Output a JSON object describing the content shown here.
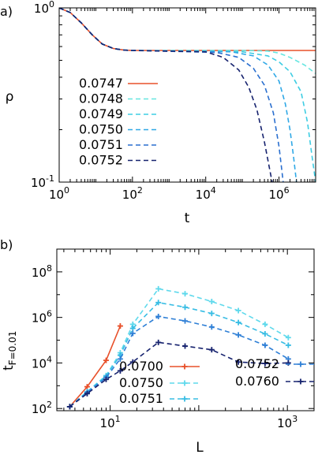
{
  "chart_data": [
    {
      "type": "line",
      "panel_label": "a)",
      "xlabel": "t",
      "ylabel": "ρ",
      "xscale": "log",
      "yscale": "log",
      "xlim": [
        1,
        10000000
      ],
      "ylim": [
        0.1,
        1
      ],
      "x_ticks": [
        {
          "value": 1,
          "base": "10",
          "exp": "0"
        },
        {
          "value": 100,
          "base": "10",
          "exp": "2"
        },
        {
          "value": 10000,
          "base": "10",
          "exp": "4"
        },
        {
          "value": 1000000,
          "base": "10",
          "exp": "6"
        }
      ],
      "y_ticks": [
        {
          "value": 1,
          "base": "10",
          "exp": "0"
        },
        {
          "value": 0.1,
          "base": "10",
          "exp": "-1"
        }
      ],
      "legend_position": "bottom-left",
      "series": [
        {
          "name": "0.0747",
          "color": "#e8502a",
          "dash": "solid",
          "points": [
            [
              1,
              1
            ],
            [
              2,
              0.94
            ],
            [
              4,
              0.82
            ],
            [
              8,
              0.7
            ],
            [
              15,
              0.62
            ],
            [
              30,
              0.585
            ],
            [
              60,
              0.572
            ],
            [
              100,
              0.57
            ],
            [
              10000000,
              0.57
            ]
          ]
        },
        {
          "name": "0.0748",
          "color": "#66e6e0",
          "dash": "dashed",
          "points": [
            [
              1,
              1
            ],
            [
              2,
              0.94
            ],
            [
              4,
              0.82
            ],
            [
              8,
              0.7
            ],
            [
              15,
              0.62
            ],
            [
              30,
              0.585
            ],
            [
              60,
              0.572
            ],
            [
              100,
              0.57
            ],
            [
              100000,
              0.57
            ],
            [
              500000,
              0.565
            ],
            [
              1000000,
              0.55
            ],
            [
              2000000,
              0.52
            ],
            [
              5000000,
              0.47
            ],
            [
              10000000,
              0.42
            ]
          ]
        },
        {
          "name": "0.0749",
          "color": "#3ecde3",
          "dash": "dashed",
          "points": [
            [
              1,
              1
            ],
            [
              2,
              0.94
            ],
            [
              4,
              0.82
            ],
            [
              8,
              0.7
            ],
            [
              15,
              0.62
            ],
            [
              30,
              0.585
            ],
            [
              60,
              0.572
            ],
            [
              100,
              0.57
            ],
            [
              100000,
              0.56
            ],
            [
              500000,
              0.53
            ],
            [
              1000000,
              0.49
            ],
            [
              2000000,
              0.43
            ],
            [
              4000000,
              0.33
            ],
            [
              6000000,
              0.22
            ],
            [
              8000000,
              0.14
            ],
            [
              10000000,
              0.1
            ]
          ]
        },
        {
          "name": "0.0750",
          "color": "#2fa8e6",
          "dash": "dashed",
          "points": [
            [
              1,
              1
            ],
            [
              2,
              0.94
            ],
            [
              4,
              0.82
            ],
            [
              8,
              0.7
            ],
            [
              15,
              0.62
            ],
            [
              30,
              0.585
            ],
            [
              60,
              0.572
            ],
            [
              100,
              0.57
            ],
            [
              50000,
              0.56
            ],
            [
              200000,
              0.53
            ],
            [
              500000,
              0.47
            ],
            [
              1000000,
              0.38
            ],
            [
              1500000,
              0.28
            ],
            [
              2000000,
              0.2
            ],
            [
              2500000,
              0.14
            ],
            [
              3000000,
              0.1
            ]
          ]
        },
        {
          "name": "0.0751",
          "color": "#2a6fcf",
          "dash": "dashed",
          "points": [
            [
              1,
              1
            ],
            [
              2,
              0.94
            ],
            [
              4,
              0.82
            ],
            [
              8,
              0.7
            ],
            [
              15,
              0.62
            ],
            [
              30,
              0.585
            ],
            [
              60,
              0.572
            ],
            [
              100,
              0.57
            ],
            [
              20000,
              0.555
            ],
            [
              80000,
              0.52
            ],
            [
              200000,
              0.45
            ],
            [
              400000,
              0.36
            ],
            [
              700000,
              0.25
            ],
            [
              1000000,
              0.16
            ],
            [
              1300000,
              0.1
            ]
          ]
        },
        {
          "name": "0.0752",
          "color": "#16226e",
          "dash": "dashed",
          "points": [
            [
              1,
              1
            ],
            [
              2,
              0.94
            ],
            [
              4,
              0.82
            ],
            [
              8,
              0.7
            ],
            [
              15,
              0.62
            ],
            [
              30,
              0.585
            ],
            [
              60,
              0.572
            ],
            [
              100,
              0.57
            ],
            [
              10000,
              0.56
            ],
            [
              30000,
              0.52
            ],
            [
              80000,
              0.44
            ],
            [
              150000,
              0.35
            ],
            [
              250000,
              0.26
            ],
            [
              400000,
              0.17
            ],
            [
              550000,
              0.12
            ],
            [
              650000,
              0.1
            ]
          ]
        }
      ]
    },
    {
      "type": "line",
      "panel_label": "b)",
      "xlabel": "L",
      "ylabel": "t",
      "ylabel_sub": "F=0.01",
      "xscale": "log",
      "yscale": "log",
      "xlim": [
        2.5,
        2000
      ],
      "ylim": [
        80,
        1000000000
      ],
      "x_ticks": [
        {
          "value": 10,
          "base": "10",
          "exp": "1"
        },
        {
          "value": 1000,
          "base": "10",
          "exp": "3"
        }
      ],
      "y_ticks": [
        {
          "value": 100,
          "base": "10",
          "exp": "2"
        },
        {
          "value": 10000,
          "base": "10",
          "exp": "4"
        },
        {
          "value": 1000000,
          "base": "10",
          "exp": "6"
        },
        {
          "value": 100000000,
          "base": "10",
          "exp": "8"
        }
      ],
      "legend_position": "bottom-right",
      "series": [
        {
          "name": "0.0700",
          "color": "#e8502a",
          "dash": "solid",
          "points": [
            [
              3.5,
              120
            ],
            [
              5.5,
              900
            ],
            [
              9,
              13000
            ],
            [
              13,
              420000
            ]
          ]
        },
        {
          "name": "0.0750",
          "color": "#5fd9ec",
          "dash": "dashed",
          "points": [
            [
              3.5,
              120
            ],
            [
              5.5,
              560
            ],
            [
              9,
              2800
            ],
            [
              13,
              28000
            ],
            [
              18,
              500000
            ],
            [
              35,
              18000000
            ],
            [
              70,
              11000000
            ],
            [
              140,
              5000000
            ],
            [
              280,
              2000000
            ],
            [
              560,
              500000
            ],
            [
              1024,
              130000
            ]
          ]
        },
        {
          "name": "0.0751",
          "color": "#38bde4",
          "dash": "dashed",
          "points": [
            [
              3.5,
              120
            ],
            [
              5.5,
              530
            ],
            [
              9,
              2600
            ],
            [
              13,
              22000
            ],
            [
              18,
              330000
            ],
            [
              35,
              4500000
            ],
            [
              70,
              2800000
            ],
            [
              140,
              1500000
            ],
            [
              280,
              600000
            ],
            [
              560,
              190000
            ],
            [
              1024,
              60000
            ]
          ]
        },
        {
          "name": "0.0752",
          "color": "#2e7fd6",
          "dash": "dashed",
          "points": [
            [
              3.5,
              120
            ],
            [
              5.5,
              500
            ],
            [
              9,
              2300
            ],
            [
              13,
              15000
            ],
            [
              18,
              200000
            ],
            [
              35,
              1100000
            ],
            [
              70,
              700000
            ],
            [
              140,
              380000
            ],
            [
              280,
              170000
            ],
            [
              560,
              60000
            ],
            [
              1024,
              15000
            ]
          ]
        },
        {
          "name": "0.0760",
          "color": "#16226e",
          "dash": "dashed",
          "points": [
            [
              3.5,
              120
            ],
            [
              5.5,
              450
            ],
            [
              9,
              1900
            ],
            [
              13,
              4500
            ],
            [
              18,
              11000
            ],
            [
              35,
              80000
            ],
            [
              70,
              55000
            ],
            [
              140,
              38000
            ],
            [
              280,
              11000
            ],
            [
              560,
              9500
            ],
            [
              1024,
              10000
            ]
          ]
        }
      ]
    }
  ]
}
